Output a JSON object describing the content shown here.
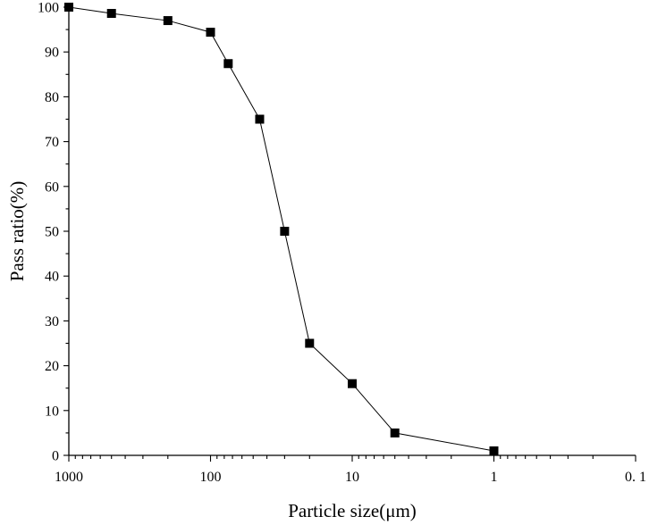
{
  "chart_data": {
    "type": "line",
    "title": "",
    "xlabel": "Particle size(μm)",
    "ylabel": "Pass ratio(%)",
    "xscale": "log",
    "x_reversed": true,
    "xlim": [
      1000,
      0.1
    ],
    "ylim": [
      0,
      100
    ],
    "x_ticks": [
      {
        "value": 1000,
        "label": "1000"
      },
      {
        "value": 100,
        "label": "100"
      },
      {
        "value": 10,
        "label": "10"
      },
      {
        "value": 1,
        "label": "1"
      },
      {
        "value": 0.1,
        "label": "0. 1"
      }
    ],
    "y_ticks": [
      0,
      10,
      20,
      30,
      40,
      50,
      60,
      70,
      80,
      90,
      100
    ],
    "grid": false,
    "legend": "none",
    "marker": "square",
    "color": "#000000",
    "series": [
      {
        "x": [
          1000,
          500,
          200,
          100,
          75,
          45,
          30,
          20,
          10,
          5,
          1
        ],
        "y": [
          100,
          98.6,
          97,
          94.4,
          87.4,
          75,
          50,
          25,
          16,
          5,
          1
        ]
      }
    ]
  }
}
